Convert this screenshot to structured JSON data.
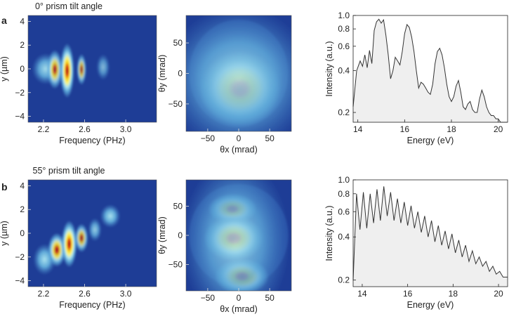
{
  "figure": {
    "rows": [
      {
        "label": "a",
        "title": "0° prism tilt angle"
      },
      {
        "label": "b",
        "title": "55° prism tilt angle"
      }
    ]
  },
  "colors": {
    "map_background": "#1e3d96",
    "spectrum_fill": "#efefef",
    "spectrum_line": "#333333"
  },
  "chart_data": [
    {
      "type": "heatmap",
      "panel": "a-left",
      "xlabel": "Frequency (PHz)",
      "ylabel": "y (µm)",
      "xlim": [
        2.05,
        3.3
      ],
      "ylim": [
        -4.5,
        4.5
      ],
      "xticks": [
        "2.2",
        "2.6",
        "3.0"
      ],
      "xtick_values": [
        2.2,
        2.6,
        3.0
      ],
      "yticks": [
        "4",
        "2",
        "0",
        "−2",
        "−4"
      ],
      "ytick_values": [
        4,
        2,
        0,
        -2,
        -4
      ],
      "spots": [
        {
          "x": 2.22,
          "y": 0.0,
          "sx": 0.06,
          "sy": 0.6,
          "a": 0.35
        },
        {
          "x": 2.31,
          "y": -0.05,
          "sx": 0.035,
          "sy": 0.75,
          "a": 0.62
        },
        {
          "x": 2.43,
          "y": -0.15,
          "sx": 0.032,
          "sy": 1.05,
          "a": 1.0
        },
        {
          "x": 2.57,
          "y": -0.05,
          "sx": 0.022,
          "sy": 0.6,
          "a": 0.48
        },
        {
          "x": 2.78,
          "y": 0.15,
          "sx": 0.03,
          "sy": 0.5,
          "a": 0.22
        }
      ]
    },
    {
      "type": "heatmap",
      "panel": "a-middle",
      "xlabel": "θx (mrad)",
      "ylabel": "θy (mrad)",
      "xlim": [
        -85,
        85
      ],
      "ylim": [
        -95,
        95
      ],
      "xticks": [
        "−50",
        "0",
        "50"
      ],
      "xtick_values": [
        -50,
        0,
        50
      ],
      "yticks": [
        "50",
        "0",
        "−50"
      ],
      "ytick_values": [
        50,
        0,
        -50
      ],
      "spots": [
        {
          "x": 2,
          "y": -25,
          "sx": 30,
          "sy": 28,
          "a": 1.0
        },
        {
          "x": 0,
          "y": -10,
          "sx": 55,
          "sy": 55,
          "a": 0.28
        }
      ]
    },
    {
      "type": "area",
      "panel": "a-right",
      "xlabel": "Energy (eV)",
      "ylabel": "Intensity (a.u.)",
      "xlim": [
        13.8,
        20.4
      ],
      "ylim": [
        0.17,
        1.0
      ],
      "yscale": "log",
      "xticks": [
        "14",
        "16",
        "18",
        "20"
      ],
      "xtick_values": [
        14,
        16,
        18,
        20
      ],
      "yticks": [
        "1.0",
        "0.8",
        "0.6",
        "0.4",
        "0.2"
      ],
      "ytick_values": [
        1.0,
        0.8,
        0.6,
        0.4,
        0.2
      ],
      "x": [
        13.8,
        13.95,
        14.1,
        14.2,
        14.3,
        14.4,
        14.5,
        14.6,
        14.7,
        14.8,
        14.9,
        15.0,
        15.1,
        15.2,
        15.3,
        15.4,
        15.5,
        15.6,
        15.7,
        15.8,
        15.9,
        16.0,
        16.1,
        16.2,
        16.3,
        16.4,
        16.5,
        16.6,
        16.7,
        16.8,
        16.9,
        17.0,
        17.1,
        17.2,
        17.3,
        17.4,
        17.5,
        17.6,
        17.7,
        17.8,
        17.9,
        18.0,
        18.1,
        18.2,
        18.3,
        18.4,
        18.5,
        18.6,
        18.7,
        18.8,
        18.9,
        19.0,
        19.1,
        19.2,
        19.3,
        19.4,
        19.5,
        19.6,
        19.7,
        19.8,
        19.9,
        20.0,
        20.1,
        20.2,
        20.3,
        20.4
      ],
      "y": [
        0.22,
        0.4,
        0.47,
        0.43,
        0.52,
        0.42,
        0.56,
        0.45,
        0.78,
        0.9,
        0.94,
        0.88,
        0.93,
        0.72,
        0.52,
        0.35,
        0.4,
        0.5,
        0.47,
        0.44,
        0.55,
        0.74,
        0.86,
        0.82,
        0.7,
        0.55,
        0.4,
        0.3,
        0.33,
        0.32,
        0.3,
        0.28,
        0.27,
        0.32,
        0.45,
        0.55,
        0.58,
        0.52,
        0.42,
        0.32,
        0.26,
        0.24,
        0.26,
        0.31,
        0.34,
        0.28,
        0.22,
        0.21,
        0.23,
        0.24,
        0.21,
        0.2,
        0.2,
        0.25,
        0.29,
        0.26,
        0.22,
        0.2,
        0.19,
        0.19,
        0.18,
        0.18,
        0.17,
        0.17,
        0.17,
        0.17
      ]
    },
    {
      "type": "heatmap",
      "panel": "b-left",
      "xlabel": "Frequency (PHz)",
      "ylabel": "y (µm)",
      "xlim": [
        2.05,
        3.3
      ],
      "ylim": [
        -4.5,
        4.5
      ],
      "xticks": [
        "2.2",
        "2.6",
        "3.0"
      ],
      "xtick_values": [
        2.2,
        2.6,
        3.0
      ],
      "yticks": [
        "4",
        "2",
        "0",
        "−2",
        "−4"
      ],
      "ytick_values": [
        4,
        2,
        0,
        -2,
        -4
      ],
      "spots": [
        {
          "x": 2.21,
          "y": -2.2,
          "sx": 0.05,
          "sy": 0.6,
          "a": 0.38
        },
        {
          "x": 2.33,
          "y": -1.4,
          "sx": 0.04,
          "sy": 0.65,
          "a": 0.78
        },
        {
          "x": 2.45,
          "y": -0.9,
          "sx": 0.035,
          "sy": 0.9,
          "a": 1.0
        },
        {
          "x": 2.57,
          "y": -0.4,
          "sx": 0.03,
          "sy": 0.55,
          "a": 0.55
        },
        {
          "x": 2.7,
          "y": 0.3,
          "sx": 0.03,
          "sy": 0.45,
          "a": 0.3
        },
        {
          "x": 2.85,
          "y": 1.45,
          "sx": 0.045,
          "sy": 0.45,
          "a": 0.38
        }
      ]
    },
    {
      "type": "heatmap",
      "panel": "b-middle",
      "xlabel": "θx (mrad)",
      "ylabel": "θy (mrad)",
      "xlim": [
        -85,
        85
      ],
      "ylim": [
        -95,
        95
      ],
      "xticks": [
        "−50",
        "0",
        "50"
      ],
      "xtick_values": [
        -50,
        0,
        50
      ],
      "yticks": [
        "50",
        "0",
        "−50"
      ],
      "ytick_values": [
        50,
        0,
        -50
      ],
      "spots": [
        {
          "x": -10,
          "y": 45,
          "sx": 18,
          "sy": 12,
          "a": 0.55
        },
        {
          "x": -8,
          "y": -5,
          "sx": 22,
          "sy": 18,
          "a": 1.0
        },
        {
          "x": 5,
          "y": -70,
          "sx": 20,
          "sy": 14,
          "a": 0.82
        },
        {
          "x": -5,
          "y": -10,
          "sx": 40,
          "sy": 65,
          "a": 0.25
        }
      ]
    },
    {
      "type": "area",
      "panel": "b-right",
      "xlabel": "Energy (eV)",
      "ylabel": "Intensity (a.u.)",
      "xlim": [
        13.6,
        20.4
      ],
      "ylim": [
        0.18,
        1.0
      ],
      "yscale": "log",
      "xticks": [
        "14",
        "16",
        "18",
        "20"
      ],
      "xtick_values": [
        14,
        16,
        18,
        20
      ],
      "yticks": [
        "1.0",
        "0.8",
        "0.6",
        "0.4",
        "0.2"
      ],
      "ytick_values": [
        1.0,
        0.8,
        0.6,
        0.4,
        0.2
      ],
      "x": [
        13.6,
        13.75,
        13.9,
        14.05,
        14.2,
        14.35,
        14.5,
        14.65,
        14.8,
        14.95,
        15.1,
        15.25,
        15.4,
        15.55,
        15.7,
        15.85,
        16.0,
        16.15,
        16.3,
        16.45,
        16.6,
        16.75,
        16.9,
        17.05,
        17.2,
        17.35,
        17.5,
        17.65,
        17.8,
        17.95,
        18.1,
        18.25,
        18.4,
        18.55,
        18.7,
        18.85,
        19.0,
        19.15,
        19.3,
        19.45,
        19.6,
        19.75,
        19.9,
        20.05,
        20.2,
        20.35,
        20.4
      ],
      "y": [
        0.2,
        0.8,
        0.45,
        0.82,
        0.46,
        0.8,
        0.5,
        0.86,
        0.52,
        0.9,
        0.56,
        0.82,
        0.52,
        0.74,
        0.5,
        0.7,
        0.48,
        0.66,
        0.46,
        0.6,
        0.43,
        0.56,
        0.4,
        0.52,
        0.37,
        0.48,
        0.35,
        0.44,
        0.33,
        0.42,
        0.31,
        0.38,
        0.29,
        0.35,
        0.27,
        0.32,
        0.26,
        0.29,
        0.25,
        0.27,
        0.23,
        0.25,
        0.22,
        0.23,
        0.21,
        0.21,
        0.21
      ]
    }
  ]
}
